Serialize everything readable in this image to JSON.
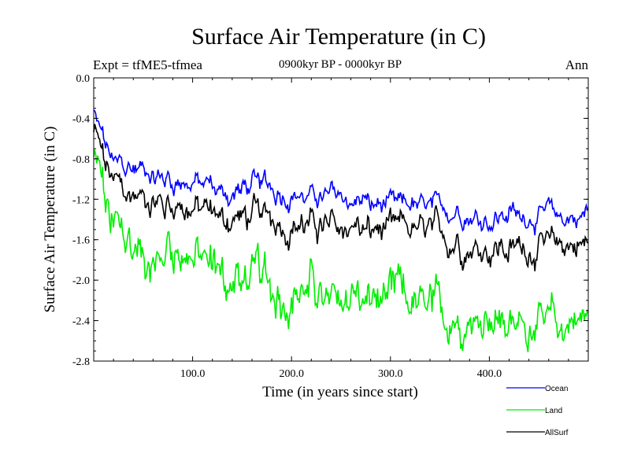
{
  "chart_data": {
    "type": "line",
    "title": "Surface Air Temperature (in C)",
    "subtitle": "0900kyr BP - 0000kyr BP",
    "expt_label": "Expt = tfME5-tfmea",
    "season_label": "Ann",
    "xlabel": "Time (in years since start)",
    "ylabel": "Surface Air Temperature (in C)",
    "xlim": [
      0,
      500
    ],
    "ylim": [
      -2.8,
      0.0
    ],
    "x_ticks": [
      100,
      200,
      300,
      400
    ],
    "x_tick_labels": [
      "100.0",
      "200.0",
      "300.0",
      "400.0"
    ],
    "y_ticks": [
      0.0,
      -0.4,
      -0.8,
      -1.2,
      -1.6,
      -2.0,
      -2.4,
      -2.8
    ],
    "y_tick_labels": [
      "0.0",
      "-0.4",
      "-0.8",
      "-1.2",
      "-1.6",
      "-2.0",
      "-2.4",
      "-2.8"
    ],
    "x": [
      0,
      20,
      40,
      60,
      80,
      100,
      120,
      140,
      160,
      180,
      200,
      220,
      240,
      260,
      280,
      300,
      320,
      340,
      360,
      380,
      400,
      420,
      440,
      460,
      480,
      500
    ],
    "series": [
      {
        "name": "Ocean",
        "color": "#0000ff",
        "values": [
          -0.35,
          -0.85,
          -0.9,
          -0.95,
          -1.0,
          -1.05,
          -1.1,
          -1.15,
          -1.05,
          -1.1,
          -1.15,
          -1.2,
          -1.15,
          -1.2,
          -1.25,
          -1.3,
          -1.25,
          -1.3,
          -1.3,
          -1.35,
          -1.4,
          -1.35,
          -1.4,
          -1.35,
          -1.4,
          -1.3
        ]
      },
      {
        "name": "Land",
        "color": "#00ee00",
        "values": [
          -0.8,
          -1.5,
          -1.65,
          -1.8,
          -1.7,
          -1.75,
          -1.9,
          -2.0,
          -1.95,
          -2.05,
          -2.15,
          -2.1,
          -2.2,
          -2.1,
          -2.2,
          -2.25,
          -2.2,
          -2.3,
          -2.35,
          -2.4,
          -2.35,
          -2.45,
          -2.4,
          -2.5,
          -2.4,
          -2.3
        ]
      },
      {
        "name": "AllSurf",
        "color": "#000000",
        "values": [
          -0.55,
          -1.05,
          -1.15,
          -1.2,
          -1.25,
          -1.3,
          -1.35,
          -1.4,
          -1.35,
          -1.4,
          -1.45,
          -1.45,
          -1.5,
          -1.45,
          -1.5,
          -1.55,
          -1.5,
          -1.55,
          -1.6,
          -1.65,
          -1.65,
          -1.7,
          -1.65,
          -1.7,
          -1.65,
          -1.6
        ]
      }
    ]
  }
}
